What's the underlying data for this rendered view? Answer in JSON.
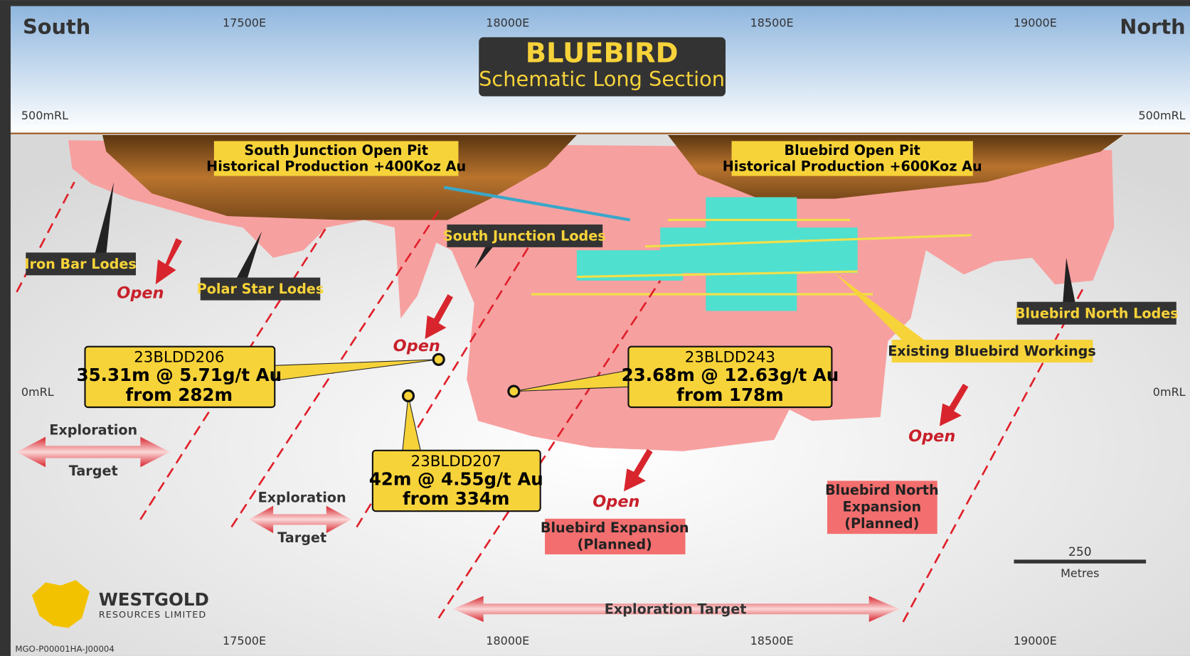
{
  "title": "BLUEBIRD",
  "subtitle": "Schematic Long Section",
  "directions": [
    "South",
    "North"
  ],
  "eastings": [
    "17500E",
    "18000E",
    "18500E",
    "19000E"
  ],
  "elevations": [
    "500mRL",
    "0mRL"
  ],
  "pits": [
    [
      "South Junction Open Pit",
      "Historical Production +400Koz Au"
    ],
    [
      "Bluebird Open Pit",
      "Historical Production +600Koz Au"
    ]
  ],
  "lodes": [
    "Iron Bar Lodes",
    "Polar Star Lodes",
    "South Junction Lodes",
    "Bluebird North Lodes",
    "Existing Bluebird Workings"
  ],
  "drillholes": [
    {
      "id": "23BLDD206",
      "lines": [
        "35.31m @ 5.71g/t Au",
        "from 282m"
      ]
    },
    {
      "id": "23BLDD207",
      "lines": [
        "42m @ 4.55g/t Au",
        "from 334m"
      ]
    },
    {
      "id": "23BLDD243",
      "lines": [
        "23.68m @ 12.63g/t Au",
        "from 178m"
      ]
    }
  ],
  "open": [
    "Open",
    "Open",
    "Open",
    "Open"
  ],
  "exploration_targets": [
    [
      "Exploration",
      "Target"
    ],
    [
      "Exploration",
      "Target"
    ],
    [
      "Exploration Target"
    ]
  ],
  "expansions": [
    [
      "Bluebird Expansion",
      "(Planned)"
    ],
    [
      "Bluebird North",
      "Expansion",
      "(Planned)"
    ]
  ],
  "scale": {
    "label": "250",
    "unit": "Metres"
  },
  "logo": [
    "WESTGOLD",
    "RESOURCES LIMITED"
  ],
  "document_id": "MGO-P00001HA-J00004"
}
